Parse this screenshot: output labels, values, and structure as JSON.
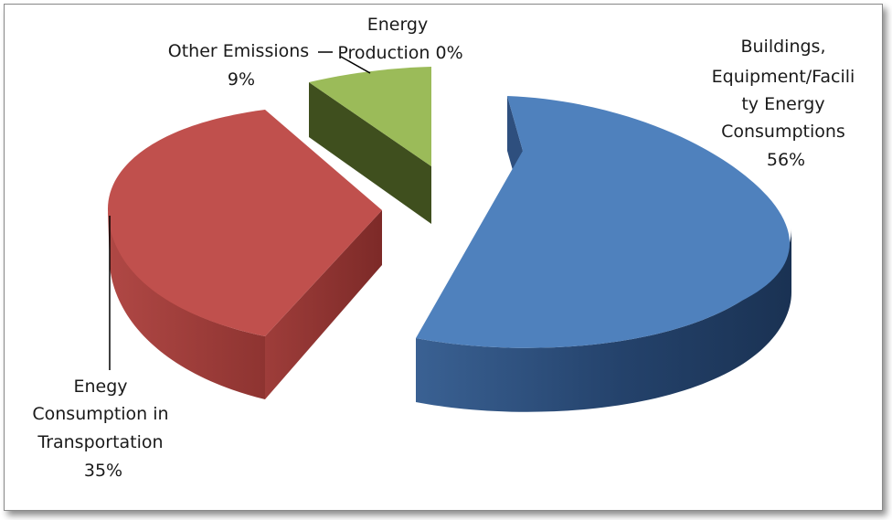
{
  "chart_data": {
    "type": "pie",
    "style": "3d-exploded",
    "slices": [
      {
        "label_lines": [
          "Buildings,",
          "Equipment/Facili",
          "ty Energy",
          "Consumptions"
        ],
        "percent_label": "56%",
        "value": 56,
        "color": "#4f81bd",
        "side_color": "#23406a"
      },
      {
        "label_lines": [
          "Enegy",
          "Consumption in",
          "Transportation"
        ],
        "percent_label": "35%",
        "value": 35,
        "color": "#c0504d",
        "side_color": "#8a302e"
      },
      {
        "label_lines": [
          "Other Emissions"
        ],
        "percent_label": "9%",
        "value": 9,
        "color": "#9bbb59",
        "side_color": "#4a5e24"
      },
      {
        "label_lines": [
          "Energy",
          "Production 0%"
        ],
        "percent_label": "",
        "value": 0,
        "color": "#8064a2",
        "side_color": "#4a3a60"
      }
    ],
    "legend": "none"
  }
}
